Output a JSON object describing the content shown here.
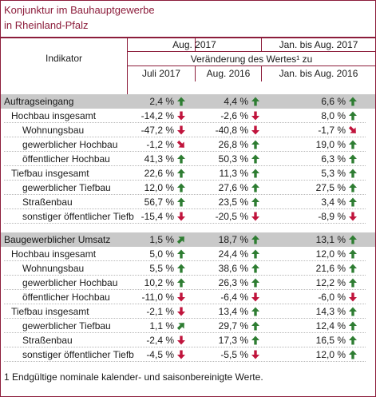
{
  "title": [
    "Konjunktur im Bauhauptgewerbe",
    "in Rheinland-Pfalz"
  ],
  "header": {
    "indikator": "Indikator",
    "aug2017": "Aug. 2017",
    "jan_aug2017": "Jan. bis Aug. 2017",
    "veraenderung": "Veränderung des Wertes¹ zu",
    "juli2017": "Juli 2017",
    "aug2016": "Aug. 2016",
    "jan_aug2016": "Jan. bis Aug. 2016"
  },
  "colors": {
    "up": "#2e7d32",
    "down": "#c0143c",
    "accent": "#8c1d3b"
  },
  "sections": [
    {
      "rows": [
        {
          "label": "Auftragseingang",
          "level": 0,
          "section": true,
          "v1": "2,4 %",
          "a1": "up",
          "v2": "4,4 %",
          "a2": "up",
          "v3": "6,6 %",
          "a3": "up"
        },
        {
          "label": "Hochbau insgesamt",
          "level": 1,
          "v1": "-14,2 %",
          "a1": "down",
          "v2": "-2,6 %",
          "a2": "down",
          "v3": "8,0 %",
          "a3": "up"
        },
        {
          "label": "Wohnungsbau",
          "level": 2,
          "v1": "-47,2 %",
          "a1": "down",
          "v2": "-40,8 %",
          "a2": "down",
          "v3": "-1,7 %",
          "a3": "downright"
        },
        {
          "label": "gewerblicher Hochbau",
          "level": 2,
          "v1": "-1,2 %",
          "a1": "downright",
          "v2": "26,8 %",
          "a2": "up",
          "v3": "19,0 %",
          "a3": "up"
        },
        {
          "label": "öffentlicher Hochbau",
          "level": 2,
          "v1": "41,3 %",
          "a1": "up",
          "v2": "50,3 %",
          "a2": "up",
          "v3": "6,3 %",
          "a3": "up"
        },
        {
          "label": "Tiefbau insgesamt",
          "level": 1,
          "v1": "22,6 %",
          "a1": "up",
          "v2": "11,3 %",
          "a2": "up",
          "v3": "5,3 %",
          "a3": "up"
        },
        {
          "label": "gewerblicher Tiefbau",
          "level": 2,
          "v1": "12,0 %",
          "a1": "up",
          "v2": "27,6 %",
          "a2": "up",
          "v3": "27,5 %",
          "a3": "up"
        },
        {
          "label": "Straßenbau",
          "level": 2,
          "v1": "56,7 %",
          "a1": "up",
          "v2": "23,5 %",
          "a2": "up",
          "v3": "3,4 %",
          "a3": "up"
        },
        {
          "label": "sonstiger öffentlicher Tiefb",
          "level": 2,
          "v1": "-15,4 %",
          "a1": "down",
          "v2": "-20,5 %",
          "a2": "down",
          "v3": "-8,9 %",
          "a3": "down"
        }
      ]
    },
    {
      "rows": [
        {
          "label": "Baugewerblicher Umsatz",
          "level": 0,
          "section": true,
          "v1": "1,5 %",
          "a1": "upright",
          "v2": "18,7 %",
          "a2": "up",
          "v3": "13,1 %",
          "a3": "up"
        },
        {
          "label": "Hochbau insgesamt",
          "level": 1,
          "v1": "5,0 %",
          "a1": "up",
          "v2": "24,4 %",
          "a2": "up",
          "v3": "12,0 %",
          "a3": "up"
        },
        {
          "label": "Wohnungsbau",
          "level": 2,
          "v1": "5,5 %",
          "a1": "up",
          "v2": "38,6 %",
          "a2": "up",
          "v3": "21,6 %",
          "a3": "up"
        },
        {
          "label": "gewerblicher Hochbau",
          "level": 2,
          "v1": "10,2 %",
          "a1": "up",
          "v2": "26,3 %",
          "a2": "up",
          "v3": "12,2 %",
          "a3": "up"
        },
        {
          "label": "öffentlicher Hochbau",
          "level": 2,
          "v1": "-11,0 %",
          "a1": "down",
          "v2": "-6,4 %",
          "a2": "down",
          "v3": "-6,0 %",
          "a3": "down"
        },
        {
          "label": "Tiefbau insgesamt",
          "level": 1,
          "v1": "-2,1 %",
          "a1": "down",
          "v2": "13,4 %",
          "a2": "up",
          "v3": "14,3 %",
          "a3": "up"
        },
        {
          "label": "gewerblicher Tiefbau",
          "level": 2,
          "v1": "1,1 %",
          "a1": "upright",
          "v2": "29,7 %",
          "a2": "up",
          "v3": "12,4 %",
          "a3": "up"
        },
        {
          "label": "Straßenbau",
          "level": 2,
          "v1": "-2,4 %",
          "a1": "down",
          "v2": "17,3 %",
          "a2": "up",
          "v3": "16,5 %",
          "a3": "up"
        },
        {
          "label": "sonstiger öffentlicher Tiefb",
          "level": 2,
          "v1": "-4,5 %",
          "a1": "down",
          "v2": "-5,5 %",
          "a2": "down",
          "v3": "12,0 %",
          "a3": "up"
        }
      ]
    }
  ],
  "footnote": "1 Endgültige nominale kalender- und saisonbereinigte Werte."
}
